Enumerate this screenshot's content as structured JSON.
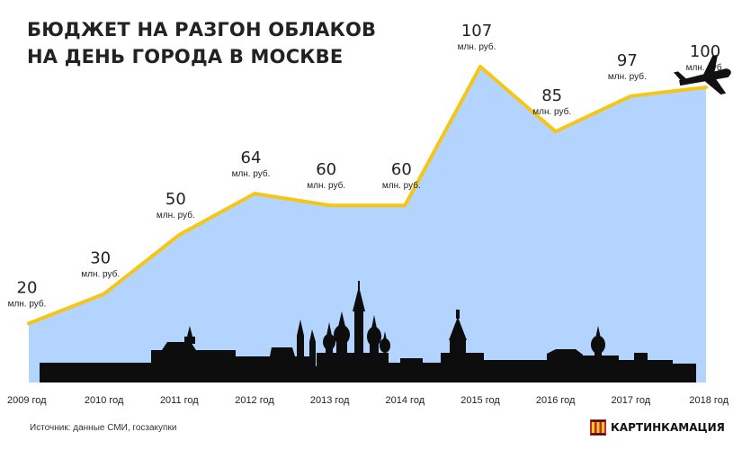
{
  "title": {
    "line1": "БЮДЖЕТ НА РАЗГОН ОБЛАКОВ",
    "line2": "НА ДЕНЬ ГОРОДА В МОСКВЕ"
  },
  "chart_data": {
    "type": "area",
    "x": [
      "2009 год",
      "2010 год",
      "2011 год",
      "2012 год",
      "2013 год",
      "2014 год",
      "2015 год",
      "2016 год",
      "2017 год",
      "2018 год"
    ],
    "values": [
      20,
      30,
      50,
      64,
      60,
      60,
      107,
      85,
      97,
      100
    ],
    "value_labels": [
      "20",
      "30",
      "50",
      "64",
      "60",
      "60",
      "107",
      "85",
      "97",
      "100"
    ],
    "unit": "млн. руб.",
    "title": "БЮДЖЕТ НА РАЗГОН ОБЛАКОВ НА ДЕНЬ ГОРОДА В МОСКВЕ",
    "ylim": [
      0,
      107
    ],
    "grid": false,
    "colors": {
      "area": "#b3d4ff",
      "line": "#f5c518",
      "skyline": "#0d0d0d"
    }
  },
  "decorations": {
    "skyline": "moscow-skyline-silhouette",
    "plane": "airplane-icon"
  },
  "footer": {
    "source": "Источник: данные СМИ, госзакупки",
    "brand": "КАРТИНКАМАЦИЯ"
  }
}
